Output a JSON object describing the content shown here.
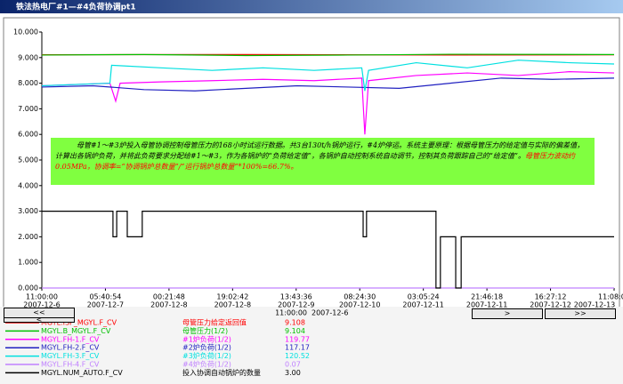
{
  "window": {
    "title": "铁法热电厂#1—#4负荷协调pt1"
  },
  "chart_data": {
    "type": "line",
    "ylim": [
      0,
      10
    ],
    "yticks": [
      {
        "value": 0,
        "label": "0.000"
      },
      {
        "value": 1,
        "label": "1.000"
      },
      {
        "value": 2,
        "label": "2.000"
      },
      {
        "value": 3,
        "label": "3.000"
      },
      {
        "value": 4,
        "label": "4.000"
      },
      {
        "value": 5,
        "label": "5.000"
      },
      {
        "value": 6,
        "label": "6.000"
      },
      {
        "value": 7,
        "label": "7.000"
      },
      {
        "value": 8,
        "label": "8.000"
      },
      {
        "value": 9,
        "label": "9.000"
      },
      {
        "value": 10,
        "label": "10.000"
      }
    ],
    "xlim": [
      0,
      168.135
    ],
    "xticks": [
      {
        "value": 0,
        "label": "11:00:00"
      },
      {
        "value": 18.6817,
        "label": "05:40:54"
      },
      {
        "value": 37.3633,
        "label": "00:21:48"
      },
      {
        "value": 56.045,
        "label": "19:02:42"
      },
      {
        "value": 74.7267,
        "label": "13:43:36"
      },
      {
        "value": 93.4083,
        "label": "08:24:30"
      },
      {
        "value": 112.09,
        "label": "03:05:24"
      },
      {
        "value": 130.7717,
        "label": "21:46:18"
      },
      {
        "value": 149.4533,
        "label": "16:27:12"
      },
      {
        "value": 168.135,
        "label": "11:08:06"
      }
    ],
    "xtick_dates": [
      "2007-12-6",
      "2007-12-7",
      "2007-12-8",
      "2007-12-8",
      "2007-12-9",
      "2007-12-10",
      "2007-12-11",
      "2007-12-11",
      "2007-12-12",
      "2007-12-13"
    ],
    "annotation": [
      {
        "text": "母管#1～#3炉投入母管协调控制母管压力的168小时试运行数据。共3台130t/h锅炉运行，#4炉停运。系统主要原理：根据母管压力的给定值与实际的偏差值，计算出各锅炉负荷，并将此负荷要求分配给#1～#3，作为各锅炉的“负荷给定值”，各锅炉自动控制系统自动调节，控制其负荷跟踪自己的“给定值”。",
        "color": "#000000"
      },
      {
        "text": "母管压力波动约0.05MPa，协调率=“协调锅炉总数量”/“运行锅炉总数量”*100%=66.7%。",
        "color": "#ff0000"
      }
    ],
    "annotation_background": "#80ff40",
    "series": [
      {
        "name": "MGYL.ISP_MGYL.F_CV",
        "description": "母管压力给定返回值",
        "current": 9.108,
        "color": "#ff0000",
        "x": [
          0,
          60,
          120,
          168.135
        ],
        "values": [
          9.11,
          9.12,
          9.1,
          9.11
        ]
      },
      {
        "name": "MGYL.B_MGYL.F_CV",
        "description": "母管压力(1/2)",
        "current": 9.104,
        "color": "#00c000",
        "x": [
          0,
          30,
          60,
          90,
          120,
          168.135
        ],
        "values": [
          9.1,
          9.12,
          9.08,
          9.1,
          9.13,
          9.12
        ]
      },
      {
        "name": "MGYL.FH-1.F_CV",
        "description": "#1炉负荷(1/2)",
        "current": 119.77,
        "color": "#ff00ff",
        "x": [
          0,
          10,
          20,
          21.7,
          23,
          35,
          50,
          65,
          80,
          94,
          94.9,
          96,
          110,
          125,
          140,
          155,
          168.135
        ],
        "values": [
          7.9,
          7.95,
          8.0,
          7.3,
          8.0,
          8.05,
          8.1,
          8.15,
          8.1,
          8.2,
          6.0,
          8.1,
          8.3,
          8.4,
          8.3,
          8.45,
          8.4
        ]
      },
      {
        "name": "MGYL.FH-2.F_CV",
        "description": "#2炉负荷(1/2)",
        "current": 117.17,
        "color": "#2020c0",
        "x": [
          0,
          15,
          30,
          45,
          60,
          75,
          90,
          105,
          120,
          135,
          150,
          168.135
        ],
        "values": [
          7.85,
          7.9,
          7.75,
          7.7,
          7.8,
          7.9,
          7.85,
          7.8,
          8.0,
          8.2,
          8.15,
          8.2
        ]
      },
      {
        "name": "MGYL.FH-3.F_CV",
        "description": "#3炉负荷(1/2)",
        "current": 120.52,
        "color": "#00e0e0",
        "x": [
          0,
          20,
          20.5,
          35,
          50,
          65,
          80,
          94,
          94.9,
          96,
          110,
          125,
          140,
          155,
          168.135
        ],
        "values": [
          7.9,
          8.0,
          8.7,
          8.6,
          8.5,
          8.6,
          8.5,
          8.6,
          7.7,
          8.5,
          8.8,
          8.6,
          8.9,
          8.8,
          8.75
        ]
      },
      {
        "name": "MGYL.FH-4.F_CV",
        "description": "#4炉负荷(1/2)",
        "current": 0.07,
        "color": "#c080ff",
        "x": [
          0,
          168.135
        ],
        "values": [
          0,
          0
        ]
      },
      {
        "name": "MGYL.NUM_AUTO.F_CV",
        "description": "投入协调自动锅炉的数量",
        "current": {
          "value": 3,
          "label": "3.00"
        },
        "color": "#000000",
        "x": [
          0,
          20.9,
          20.9,
          22.0,
          22.0,
          25.1,
          25.1,
          29.5,
          29.5,
          94.4,
          94.4,
          95.4,
          95.4,
          115.8,
          115.8,
          117.1,
          117.1,
          121.6,
          121.6,
          123.2,
          123.2,
          168.135
        ],
        "values": [
          3,
          3,
          2,
          2,
          3,
          3,
          2,
          2,
          3,
          3,
          2,
          2,
          3,
          3,
          0,
          0,
          2,
          2,
          0,
          0,
          2,
          2
        ]
      }
    ]
  },
  "navigation": {
    "first": "<<",
    "prev": "<",
    "next": ">",
    "last": ">>",
    "cursor_time": "11:00:00",
    "cursor_date": "2007-12-6"
  }
}
